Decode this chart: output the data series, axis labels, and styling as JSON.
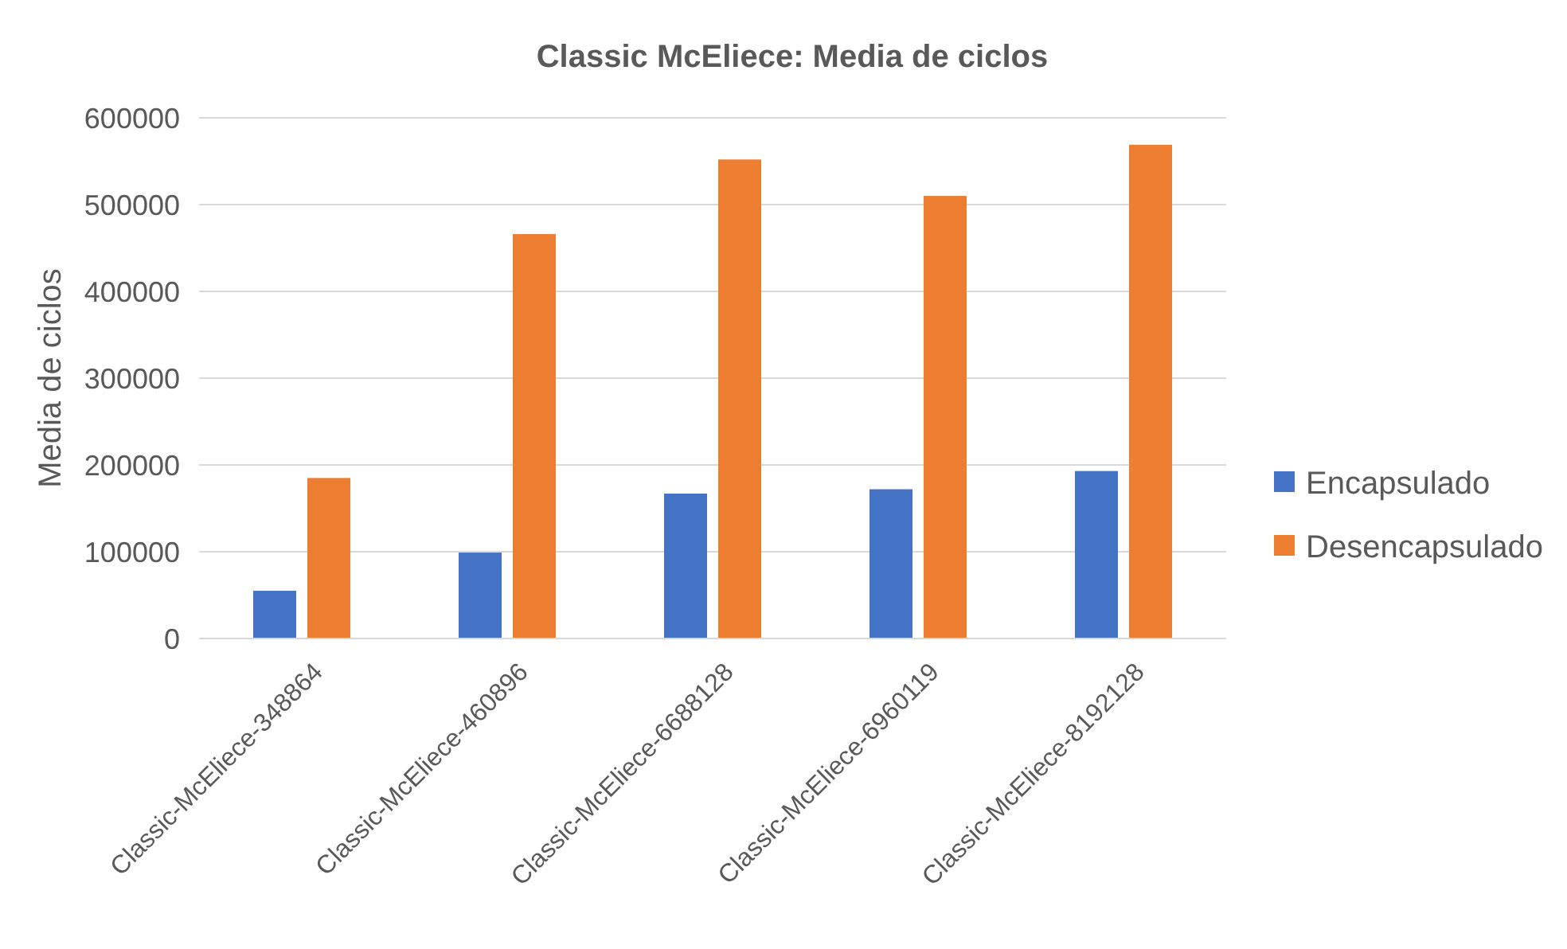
{
  "chart_data": {
    "type": "bar",
    "title": "Classic McEliece: Media de ciclos",
    "ylabel": "Media de ciclos",
    "categories": [
      "Classic-McEliece-348864",
      "Classic-McEliece-460896",
      "Classic-McEliece-6688128",
      "Classic-McEliece-6960119",
      "Classic-McEliece-8192128"
    ],
    "series": [
      {
        "name": "Encapsulado",
        "color": "#4472c4",
        "values": [
          55000,
          99000,
          167000,
          172000,
          193000
        ]
      },
      {
        "name": "Desencapsulado",
        "color": "#ed7d31",
        "values": [
          185000,
          466000,
          552000,
          510000,
          569000
        ]
      }
    ],
    "ylim": [
      0,
      600000
    ],
    "yticks": [
      0,
      100000,
      200000,
      300000,
      400000,
      500000,
      600000
    ],
    "grid": "y",
    "legend": "right"
  }
}
